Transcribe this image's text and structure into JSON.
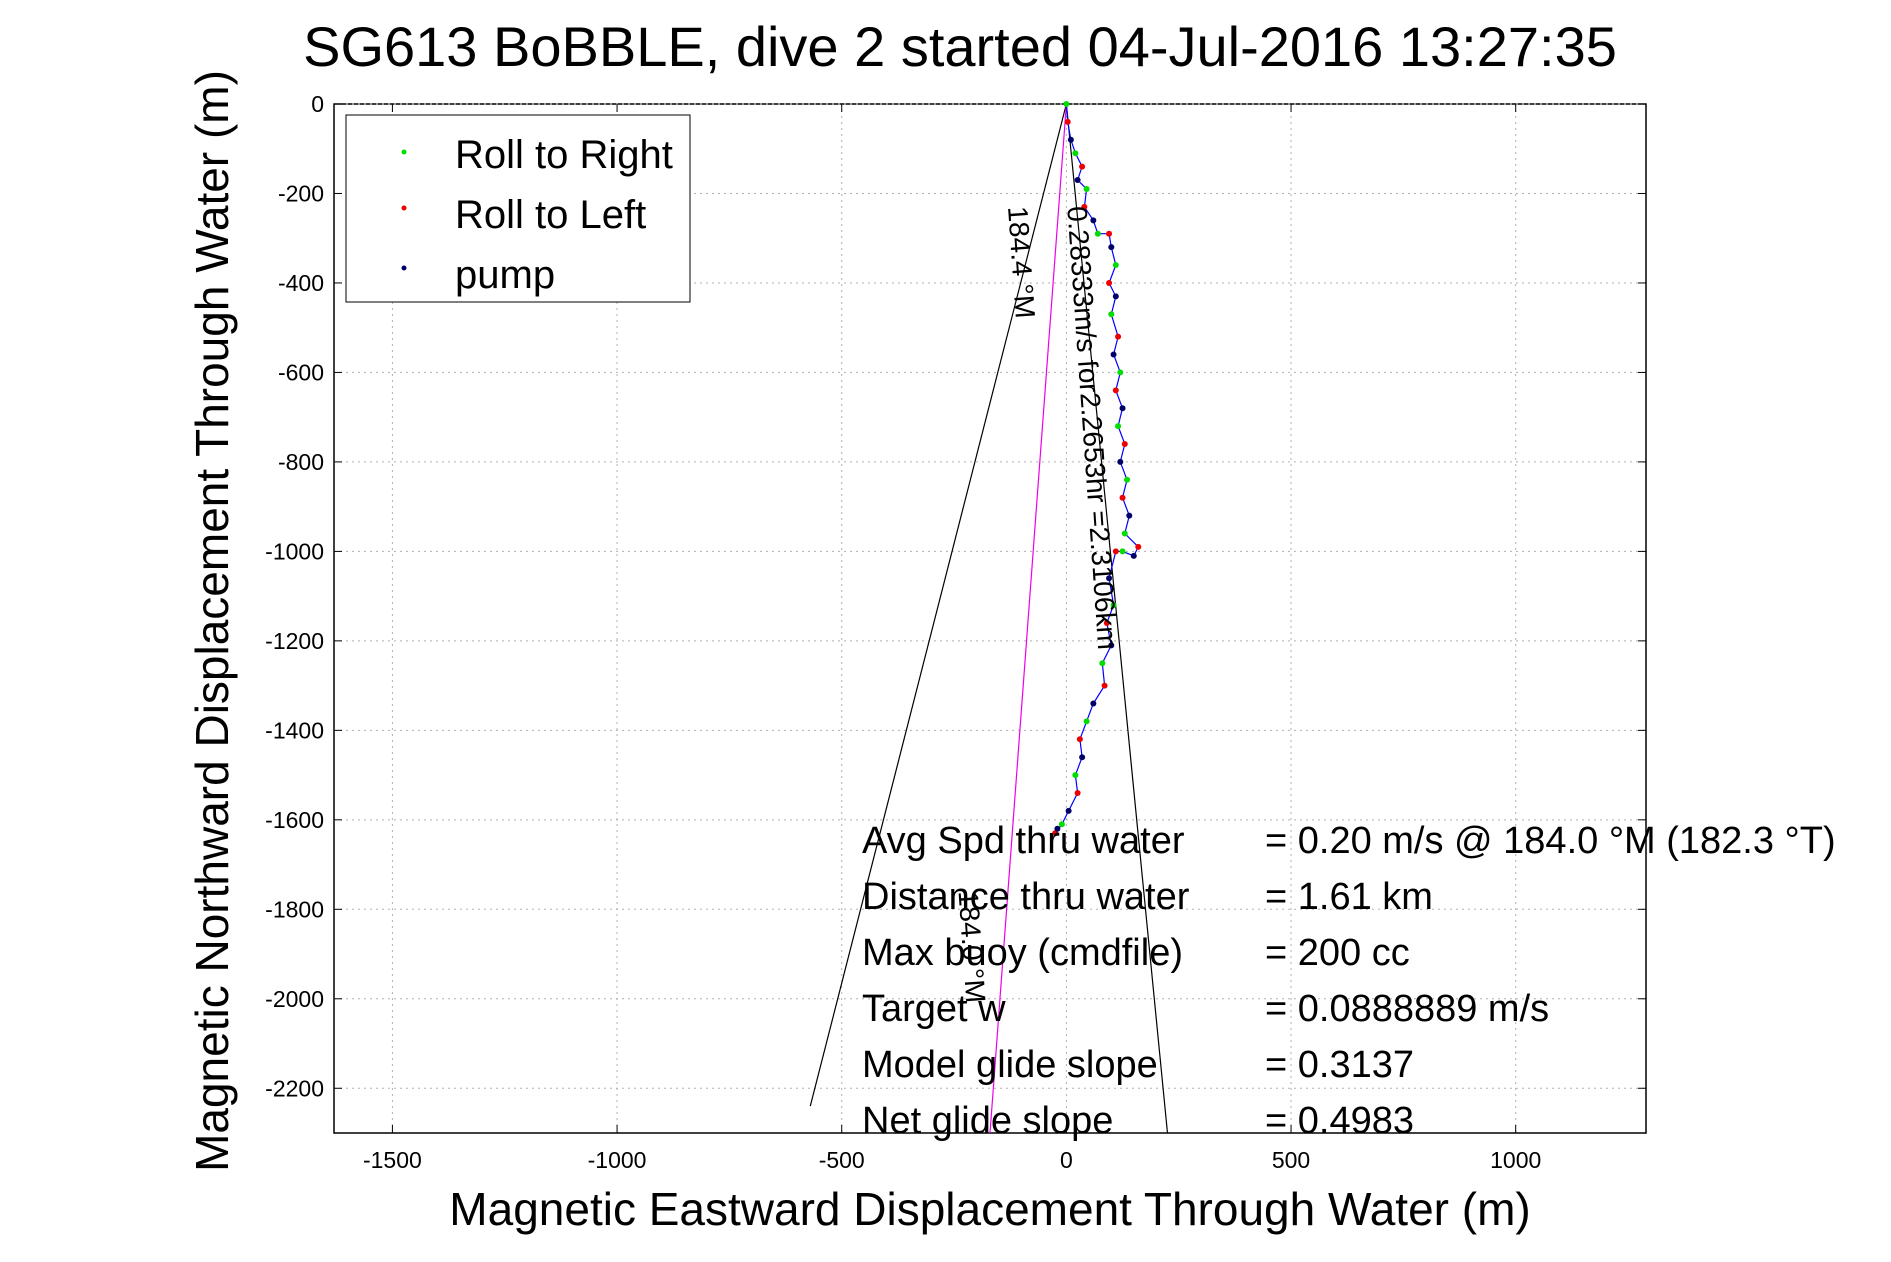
{
  "chart_data": {
    "type": "scatter",
    "title": "SG613 BoBBLE, dive 2 started 04-Jul-2016 13:27:35",
    "xlabel": "Magnetic Eastward Displacement Through Water (m)",
    "ylabel": "Magnetic Northward Displacement Through Water (m)",
    "xlim": [
      -1630,
      1290
    ],
    "ylim": [
      -2300,
      0
    ],
    "xticks": [
      -1500,
      -1000,
      -500,
      0,
      500,
      1000
    ],
    "yticks": [
      0,
      -200,
      -400,
      -600,
      -800,
      -1000,
      -1200,
      -1400,
      -1600,
      -1800,
      -2000,
      -2200
    ],
    "grid": true,
    "legend": {
      "position": "top-left",
      "entries": [
        {
          "label": "Roll to Right",
          "color": "#00dd00"
        },
        {
          "label": "Roll to Left",
          "color": "#ee0000"
        },
        {
          "label": "pump",
          "color": "#000066"
        }
      ]
    },
    "track": {
      "name": "glider track",
      "color": "#0000ff",
      "x": [
        0,
        3,
        10,
        20,
        35,
        25,
        45,
        40,
        60,
        70,
        95,
        100,
        110,
        95,
        110,
        100,
        115,
        105,
        120,
        110,
        125,
        115,
        130,
        120,
        135,
        125,
        140,
        130,
        160,
        150,
        125,
        110,
        95,
        105,
        90,
        100,
        80,
        85,
        60,
        45,
        30,
        35,
        20,
        25,
        5,
        -10,
        -25,
        -20
      ],
      "y": [
        0,
        -40,
        -80,
        -110,
        -140,
        -170,
        -190,
        -230,
        -260,
        -290,
        -290,
        -320,
        -360,
        -400,
        -430,
        -470,
        -520,
        -560,
        -600,
        -640,
        -680,
        -720,
        -760,
        -800,
        -840,
        -880,
        -920,
        -960,
        -990,
        -1010,
        -1000,
        -1000,
        -1060,
        -1120,
        -1160,
        -1210,
        -1250,
        -1300,
        -1340,
        -1380,
        -1420,
        -1460,
        -1500,
        -1540,
        -1580,
        -1610,
        -1630,
        -1620
      ]
    },
    "lines": [
      {
        "x": [
          0,
          -570
        ],
        "y": [
          0,
          -2240
        ],
        "color": "#000000"
      },
      {
        "x": [
          0,
          225
        ],
        "y": [
          0,
          -2300
        ],
        "color": "#000000"
      },
      {
        "x": [
          0,
          -170
        ],
        "y": [
          0,
          -2300
        ],
        "color": "#ee00ee"
      }
    ],
    "rotated_labels": [
      {
        "text": "0.28333m/s for2.2653hr =2.3106km",
        "x": 2,
        "y": -230
      },
      {
        "text": "184.4 °M",
        "x": -130,
        "y": -230
      },
      {
        "text": "184.0 °M",
        "x": -240,
        "y": -1760
      }
    ],
    "annotations": [
      {
        "label": "Avg Spd thru water",
        "value": "=  0.20 m/s @  184.0  °M (182.3  °T)"
      },
      {
        "label": "Distance thru water",
        "value": "=  1.61 km"
      },
      {
        "label": "Max buoy (cmdfile)",
        "value": "= 200 cc"
      },
      {
        "label": "Target w",
        "value": "= 0.0888889 m/s"
      },
      {
        "label": "Model glide slope",
        "value": "= 0.3137"
      },
      {
        "label": "Net glide slope",
        "value": "= 0.4983"
      }
    ]
  }
}
